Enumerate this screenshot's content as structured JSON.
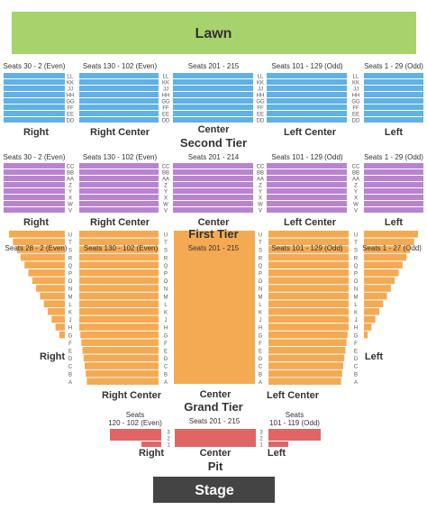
{
  "lawn": {
    "label": "Lawn",
    "color": "#a6d36b"
  },
  "stage": {
    "label": "Stage",
    "color": "#444444"
  },
  "colors": {
    "upper": "#5fb1e6",
    "second": "#b884d1",
    "first": "#f4aa52",
    "pit": "#e06666",
    "row_text": "#555555"
  },
  "upper": {
    "headers": [
      "Seats 30 - 2 (Even)",
      "Seats 130 - 102 (Even)",
      "Seats 201 - 215",
      "Seats 101 - 129 (Odd)",
      "Seats 1 - 29 (Odd)"
    ],
    "rows": [
      "LL",
      "KK",
      "JJ",
      "HH",
      "GG",
      "FF",
      "EE",
      "DD"
    ],
    "labels": [
      "Right",
      "Right Center",
      "Center",
      "Left Center",
      "Left"
    ]
  },
  "second": {
    "tier": "Second Tier",
    "headers": [
      "Seats 30 - 2 (Even)",
      "Seats 130 - 102 (Even)",
      "Seats 201 - 214",
      "Seats 101 - 129 (Odd)",
      "Seats 1 - 29 (Odd)"
    ],
    "rows": [
      "CC",
      "BB",
      "AA",
      "Z",
      "Y",
      "X",
      "W",
      "V"
    ],
    "labels": [
      "Right",
      "Right Center",
      "Center",
      "Left Center",
      "Left"
    ]
  },
  "first": {
    "tier": "First Tier",
    "headers": [
      "Seats 28 - 2 (Even)",
      "Seats 130 - 102 (Even)",
      "Seats 201 - 215",
      "Seats 101 - 129 (Odd)",
      "Seats 1 - 27 (Odd)"
    ],
    "rows": [
      "U",
      "T",
      "S",
      "R",
      "Q",
      "P",
      "O",
      "N",
      "M",
      "L",
      "K",
      "J",
      "H",
      "G",
      "F",
      "E",
      "D",
      "C",
      "B",
      "A"
    ],
    "labels": [
      "Right",
      "Right Center",
      "Center",
      "Left Center",
      "Left"
    ]
  },
  "grand": {
    "tier": "Grand Tier",
    "headers": [
      "Seats",
      "120 - 102 (Even)",
      "Seats 201 - 215",
      "Seats",
      "101 - 119 (Odd)"
    ],
    "rows": [
      "3",
      "2",
      "1"
    ]
  },
  "pit": {
    "tier": "Pit",
    "labels": [
      "Right",
      "Center",
      "Left"
    ]
  }
}
